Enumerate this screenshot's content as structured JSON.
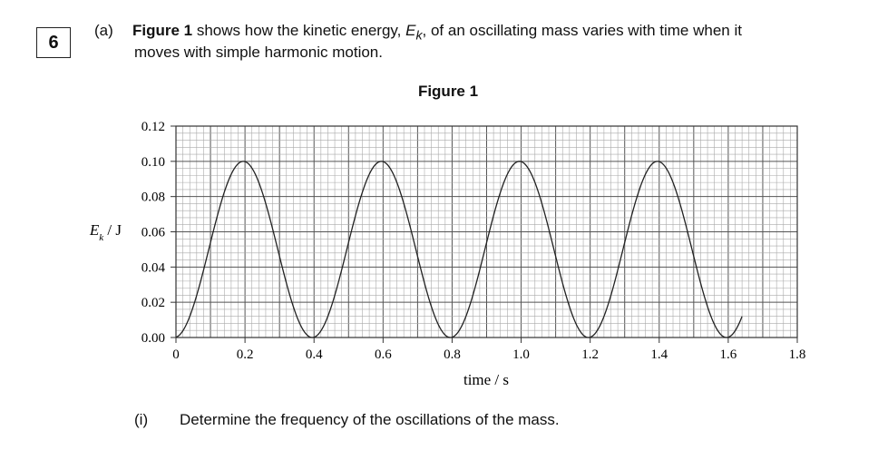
{
  "question": {
    "number": "6",
    "part": "(a)",
    "intro_bold": "Figure 1",
    "intro_rest_a": " shows how the kinetic energy, ",
    "symbol_E": "E",
    "symbol_sub": "k",
    "intro_rest_b": ", of an oscillating mass varies with time when it",
    "line2": "moves with simple harmonic motion.",
    "figure_title": "Figure 1",
    "subpart": "(i)",
    "subpart_text": "Determine the frequency of the oscillations of the mass."
  },
  "chart_data": {
    "type": "line",
    "title": "Figure 1",
    "xlabel": "time / s",
    "ylabel": "E",
    "ylabel_sub": "k",
    "ylabel_unit": " / J",
    "xlim": [
      0,
      1.8
    ],
    "ylim": [
      0,
      0.12
    ],
    "x_ticks": [
      "0",
      "0.2",
      "0.4",
      "0.6",
      "0.8",
      "1.0",
      "1.2",
      "1.4",
      "1.6",
      "1.8"
    ],
    "y_ticks": [
      "0.00",
      "0.02",
      "0.04",
      "0.06",
      "0.08",
      "0.10",
      "0.12"
    ],
    "grid": true,
    "series": [
      {
        "formula": "Ek = 0.10 * sin^2(pi * (t + 0.005) / 0.40)",
        "amplitude": 0.1,
        "period_s": 0.4,
        "t_start": 0.0,
        "t_end": 1.64,
        "peaks_at_s": [
          0.2,
          0.6,
          1.0,
          1.4
        ],
        "zeros_at_s": [
          0.0,
          0.4,
          0.8,
          1.2,
          1.6
        ]
      }
    ]
  }
}
